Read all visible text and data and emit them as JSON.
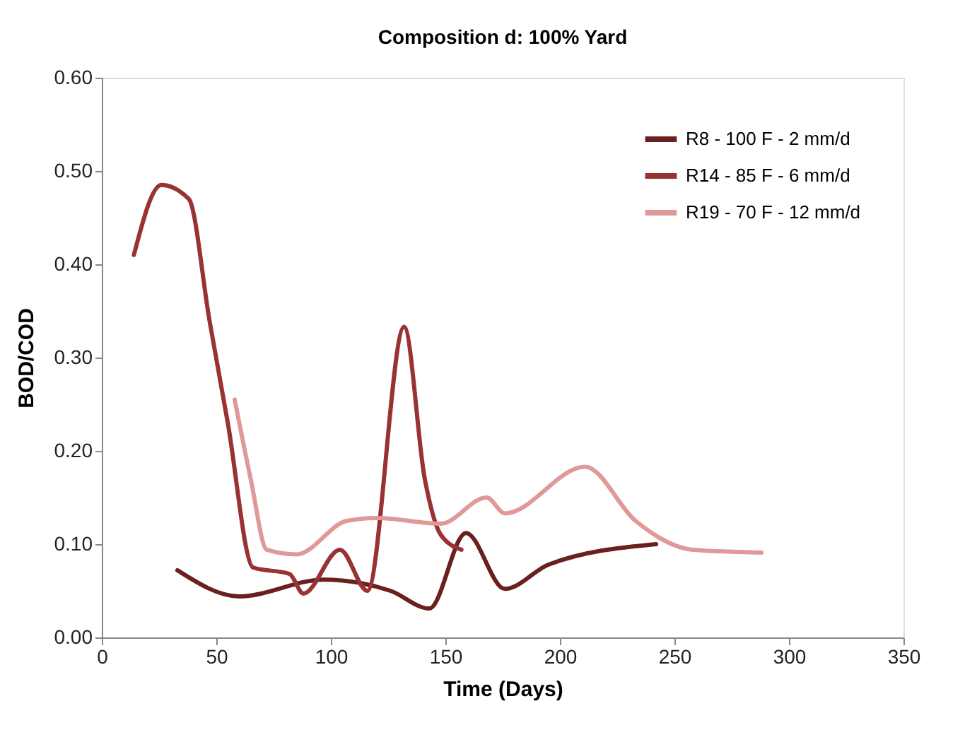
{
  "chart_data": {
    "type": "line",
    "title": "Composition d: 100% Yard",
    "xlabel": "Time (Days)",
    "ylabel": "BOD/COD",
    "xlim": [
      0,
      350
    ],
    "xticks": [
      0,
      50,
      100,
      150,
      200,
      250,
      300,
      350
    ],
    "ylim": [
      0,
      0.6
    ],
    "yticks": [
      {
        "value": 0,
        "label": "0.00"
      },
      {
        "value": 0.1,
        "label": "0.10"
      },
      {
        "value": 0.2,
        "label": "0.20"
      },
      {
        "value": 0.3,
        "label": "0.30"
      },
      {
        "value": 0.4,
        "label": "0.40"
      },
      {
        "value": 0.5,
        "label": "0.50"
      },
      {
        "value": 0.6,
        "label": "0.60"
      }
    ],
    "grid": false,
    "legend": "top right",
    "marker": "none",
    "line_style": "solid",
    "series": [
      {
        "name": "R8 - 100 F - 2 mm/d",
        "color": "#6b1f1f",
        "x": [
          33,
          60,
          97,
          126,
          143,
          159,
          176,
          195,
          242
        ],
        "values": [
          0.072,
          0.044,
          0.062,
          0.05,
          0.031,
          0.112,
          0.052,
          0.078,
          0.1
        ]
      },
      {
        "name": "R14 - 85 F - 6 mm/d",
        "color": "#993333",
        "x": [
          14,
          26,
          38,
          47,
          55,
          66,
          82,
          88,
          104,
          116,
          132,
          141,
          148,
          157
        ],
        "values": [
          0.41,
          0.485,
          0.47,
          0.34,
          0.23,
          0.075,
          0.068,
          0.047,
          0.094,
          0.05,
          0.333,
          0.17,
          0.11,
          0.094
        ]
      },
      {
        "name": "R19 - 70 F - 12 mm/d",
        "color": "#e09999",
        "x": [
          58,
          65,
          72,
          85,
          107,
          120,
          148,
          168,
          176,
          211,
          233,
          258,
          288
        ],
        "values": [
          0.255,
          0.17,
          0.094,
          0.089,
          0.125,
          0.128,
          0.122,
          0.15,
          0.133,
          0.183,
          0.125,
          0.094,
          0.091
        ]
      }
    ]
  }
}
